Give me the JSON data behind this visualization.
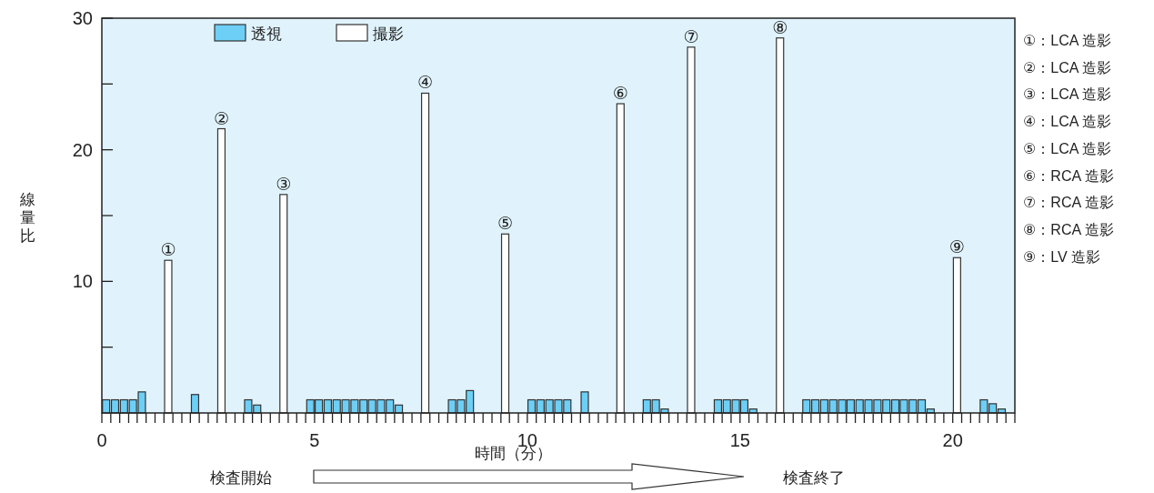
{
  "chart_data": {
    "type": "bar",
    "xlabel": "時間（分）",
    "ylabel": "線量比",
    "legend": "top left",
    "xlim": [
      0,
      21.46
    ],
    "xticks": [
      0,
      {
        "value": 0.21,
        "label": null
      },
      {
        "value": 0.42,
        "label": null
      },
      {
        "value": 0.63,
        "label": null
      },
      {
        "value": 0.83,
        "label": null
      },
      {
        "value": 1.04,
        "label": null
      },
      {
        "value": 1.25,
        "label": null
      },
      {
        "value": 1.46,
        "label": null
      },
      {
        "value": 1.67,
        "label": null
      },
      {
        "value": 1.88,
        "label": null
      },
      {
        "value": 2.08,
        "label": null
      },
      {
        "value": 2.29,
        "label": null
      },
      {
        "value": 2.5,
        "label": null
      },
      {
        "value": 2.71,
        "label": null
      },
      {
        "value": 2.92,
        "label": null
      },
      {
        "value": 3.13,
        "label": null
      },
      {
        "value": 3.33,
        "label": null
      },
      {
        "value": 3.54,
        "label": null
      },
      {
        "value": 3.75,
        "label": null
      },
      {
        "value": 3.96,
        "label": null
      },
      {
        "value": 4.17,
        "label": null
      },
      {
        "value": 4.38,
        "label": null
      },
      {
        "value": 4.58,
        "label": null
      },
      {
        "value": 4.79,
        "label": null
      },
      5,
      {
        "value": 5.21,
        "label": null
      },
      {
        "value": 5.42,
        "label": null
      },
      {
        "value": 5.63,
        "label": null
      },
      {
        "value": 5.83,
        "label": null
      },
      {
        "value": 6.04,
        "label": null
      },
      {
        "value": 6.25,
        "label": null
      },
      {
        "value": 6.46,
        "label": null
      },
      {
        "value": 6.67,
        "label": null
      },
      {
        "value": 6.88,
        "label": null
      },
      {
        "value": 7.08,
        "label": null
      },
      {
        "value": 7.29,
        "label": null
      },
      {
        "value": 7.5,
        "label": null
      },
      {
        "value": 7.71,
        "label": null
      },
      {
        "value": 7.92,
        "label": null
      },
      {
        "value": 8.13,
        "label": null
      },
      {
        "value": 8.33,
        "label": null
      },
      {
        "value": 8.54,
        "label": null
      },
      {
        "value": 8.75,
        "label": null
      },
      {
        "value": 8.96,
        "label": null
      },
      {
        "value": 9.17,
        "label": null
      },
      {
        "value": 9.38,
        "label": null
      },
      {
        "value": 9.58,
        "label": null
      },
      {
        "value": 9.79,
        "label": null
      },
      10,
      {
        "value": 10.21,
        "label": null
      },
      {
        "value": 10.42,
        "label": null
      },
      {
        "value": 10.63,
        "label": null
      },
      {
        "value": 10.83,
        "label": null
      },
      {
        "value": 11.04,
        "label": null
      },
      {
        "value": 11.25,
        "label": null
      },
      {
        "value": 11.46,
        "label": null
      },
      {
        "value": 11.67,
        "label": null
      },
      {
        "value": 11.88,
        "label": null
      },
      {
        "value": 12.08,
        "label": null
      },
      {
        "value": 12.29,
        "label": null
      },
      {
        "value": 12.5,
        "label": null
      },
      {
        "value": 12.71,
        "label": null
      },
      {
        "value": 12.92,
        "label": null
      },
      {
        "value": 13.13,
        "label": null
      },
      {
        "value": 13.33,
        "label": null
      },
      {
        "value": 13.54,
        "label": null
      },
      {
        "value": 13.75,
        "label": null
      },
      {
        "value": 13.96,
        "label": null
      },
      {
        "value": 14.17,
        "label": null
      },
      {
        "value": 14.38,
        "label": null
      },
      {
        "value": 14.58,
        "label": null
      },
      {
        "value": 14.79,
        "label": null
      },
      15,
      {
        "value": 15.21,
        "label": null
      },
      {
        "value": 15.42,
        "label": null
      },
      {
        "value": 15.63,
        "label": null
      },
      {
        "value": 15.83,
        "label": null
      },
      {
        "value": 16.04,
        "label": null
      },
      {
        "value": 16.25,
        "label": null
      },
      {
        "value": 16.46,
        "label": null
      },
      {
        "value": 16.67,
        "label": null
      },
      {
        "value": 16.88,
        "label": null
      },
      {
        "value": 17.08,
        "label": null
      },
      {
        "value": 17.29,
        "label": null
      },
      {
        "value": 17.5,
        "label": null
      },
      {
        "value": 17.71,
        "label": null
      },
      {
        "value": 17.92,
        "label": null
      },
      {
        "value": 18.13,
        "label": null
      },
      {
        "value": 18.33,
        "label": null
      },
      {
        "value": 18.54,
        "label": null
      },
      {
        "value": 18.75,
        "label": null
      },
      {
        "value": 18.96,
        "label": null
      },
      {
        "value": 19.17,
        "label": null
      },
      {
        "value": 19.38,
        "label": null
      },
      {
        "value": 19.58,
        "label": null
      },
      {
        "value": 19.79,
        "label": null
      },
      20,
      {
        "value": 20.21,
        "label": null
      },
      {
        "value": 20.42,
        "label": null
      },
      {
        "value": 20.63,
        "label": null
      },
      {
        "value": 20.83,
        "label": null
      },
      {
        "value": 21.04,
        "label": null
      },
      {
        "value": 21.25,
        "label": null
      },
      {
        "value": 21.46,
        "label": null
      }
    ],
    "ylim": [
      0,
      30
    ],
    "yticks": [
      {
        "value": 5,
        "label": null
      },
      10,
      {
        "value": 15,
        "label": null
      },
      20,
      {
        "value": 25,
        "label": null
      },
      30
    ],
    "series": [
      {
        "name": "透視",
        "color": "#6dcff6",
        "x": [
          0.1,
          0.31,
          0.52,
          0.73,
          0.94,
          2.19,
          3.44,
          3.65,
          4.9,
          5.1,
          5.31,
          5.52,
          5.73,
          5.94,
          6.15,
          6.35,
          6.56,
          6.77,
          6.98,
          8.23,
          8.44,
          8.65,
          10.1,
          10.31,
          10.52,
          10.73,
          10.94,
          11.35,
          12.81,
          13.02,
          13.23,
          14.48,
          14.69,
          14.9,
          15.1,
          15.31,
          16.56,
          16.77,
          16.98,
          17.19,
          17.4,
          17.6,
          17.81,
          18.02,
          18.23,
          18.44,
          18.65,
          18.85,
          19.06,
          19.27,
          19.48,
          20.73,
          20.94,
          21.15
        ],
        "values": [
          1,
          1,
          1,
          1,
          1.6,
          1.4,
          1,
          0.6,
          1,
          1,
          1,
          1,
          1,
          1,
          1,
          1,
          1,
          1,
          0.6,
          1,
          1,
          1.7,
          1,
          1,
          1,
          1,
          1,
          1.6,
          1,
          1,
          0.3,
          1,
          1,
          1,
          1,
          0.3,
          1,
          1,
          1,
          1,
          1,
          1,
          1,
          1,
          1,
          1,
          1,
          1,
          1,
          1,
          0.3,
          1,
          0.7,
          0.3
        ]
      },
      {
        "name": "撮影",
        "color": "#ffffff",
        "x": [
          1.56,
          2.81,
          4.27,
          7.6,
          9.48,
          12.19,
          13.85,
          15.94,
          20.1
        ],
        "values": [
          11.6,
          21.6,
          16.6,
          24.3,
          13.6,
          23.5,
          27.8,
          28.5,
          11.8
        ]
      }
    ],
    "annotations": [
      {
        "text": "①",
        "x": 1.56,
        "y": 11.6
      },
      {
        "text": "②",
        "x": 2.81,
        "y": 21.6
      },
      {
        "text": "③",
        "x": 4.27,
        "y": 16.6
      },
      {
        "text": "④",
        "x": 7.6,
        "y": 24.3
      },
      {
        "text": "⑤",
        "x": 9.48,
        "y": 13.6
      },
      {
        "text": "⑥",
        "x": 12.19,
        "y": 23.5
      },
      {
        "text": "⑦",
        "x": 13.85,
        "y": 27.8
      },
      {
        "text": "⑧",
        "x": 15.94,
        "y": 28.5
      },
      {
        "text": "⑨",
        "x": 20.1,
        "y": 11.8
      },
      "①：LCA 造影",
      "②：LCA 造影",
      "③：LCA 造影",
      "④：LCA 造影",
      "⑤：LCA 造影",
      "⑥：RCA 造影",
      "⑦：RCA 造影",
      "⑧：RCA 造影",
      "⑨：LV 造影",
      "検査開始",
      "検査終了"
    ]
  }
}
